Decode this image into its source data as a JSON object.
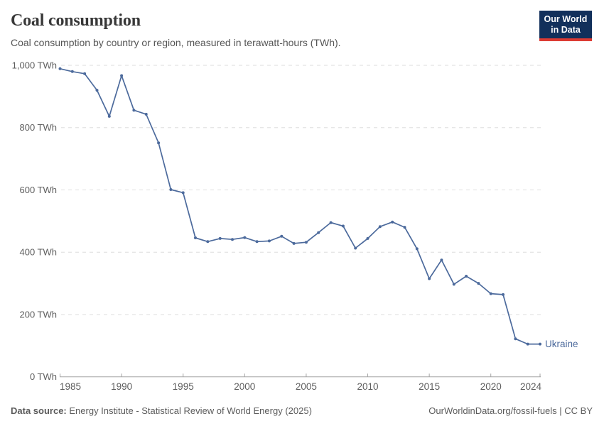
{
  "header": {
    "title": "Coal consumption",
    "subtitle": "Coal consumption by country or region, measured in terawatt-hours (TWh).",
    "logo": {
      "line1": "Our World",
      "line2": "in Data",
      "bg_color": "#12305b",
      "accent_color": "#dc3b33",
      "text_color": "#ffffff"
    }
  },
  "chart_data": {
    "type": "line",
    "title": "Coal consumption",
    "unit": "TWh",
    "xlabel": "",
    "ylabel": "",
    "xlim": [
      1985,
      2024
    ],
    "ylim": [
      0,
      1000
    ],
    "grid": "horizontal-dashed",
    "legend_position": "end-of-line",
    "grid_color": "#dedede",
    "axis_color": "#a3a3a3",
    "tick_label_color": "#5e5e5e",
    "xticks": [
      {
        "value": 1985,
        "label": "1985"
      },
      {
        "value": 1990,
        "label": "1990"
      },
      {
        "value": 1995,
        "label": "1995"
      },
      {
        "value": 2000,
        "label": "2000"
      },
      {
        "value": 2005,
        "label": "2005"
      },
      {
        "value": 2010,
        "label": "2010"
      },
      {
        "value": 2015,
        "label": "2015"
      },
      {
        "value": 2020,
        "label": "2020"
      },
      {
        "value": 2024,
        "label": "2024"
      }
    ],
    "yticks": [
      {
        "value": 0,
        "label": "0 TWh"
      },
      {
        "value": 200,
        "label": "200 TWh"
      },
      {
        "value": 400,
        "label": "400 TWh"
      },
      {
        "value": 600,
        "label": "600 TWh"
      },
      {
        "value": 800,
        "label": "800 TWh"
      },
      {
        "value": 1000,
        "label": "1,000 TWh"
      }
    ],
    "series": [
      {
        "name": "Ukraine",
        "color": "#4C6A9C",
        "x": [
          1985,
          1986,
          1987,
          1988,
          1989,
          1990,
          1991,
          1992,
          1993,
          1994,
          1995,
          1996,
          1997,
          1998,
          1999,
          2000,
          2001,
          2002,
          2003,
          2004,
          2005,
          2006,
          2007,
          2008,
          2009,
          2010,
          2011,
          2012,
          2013,
          2014,
          2015,
          2016,
          2017,
          2018,
          2019,
          2020,
          2021,
          2022,
          2023,
          2024
        ],
        "values": [
          989,
          980,
          973,
          920,
          836,
          967,
          856,
          843,
          751,
          601,
          591,
          446,
          434,
          444,
          441,
          447,
          434,
          436,
          451,
          428,
          432,
          463,
          495,
          484,
          413,
          444,
          482,
          497,
          480,
          411,
          315,
          375,
          297,
          323,
          300,
          267,
          264,
          122,
          105,
          105
        ]
      }
    ]
  },
  "footer": {
    "datasource_label": "Data source:",
    "datasource_text": "Energy Institute - Statistical Review of World Energy (2025)",
    "link_text": "OurWorldinData.org/fossil-fuels | CC BY"
  }
}
